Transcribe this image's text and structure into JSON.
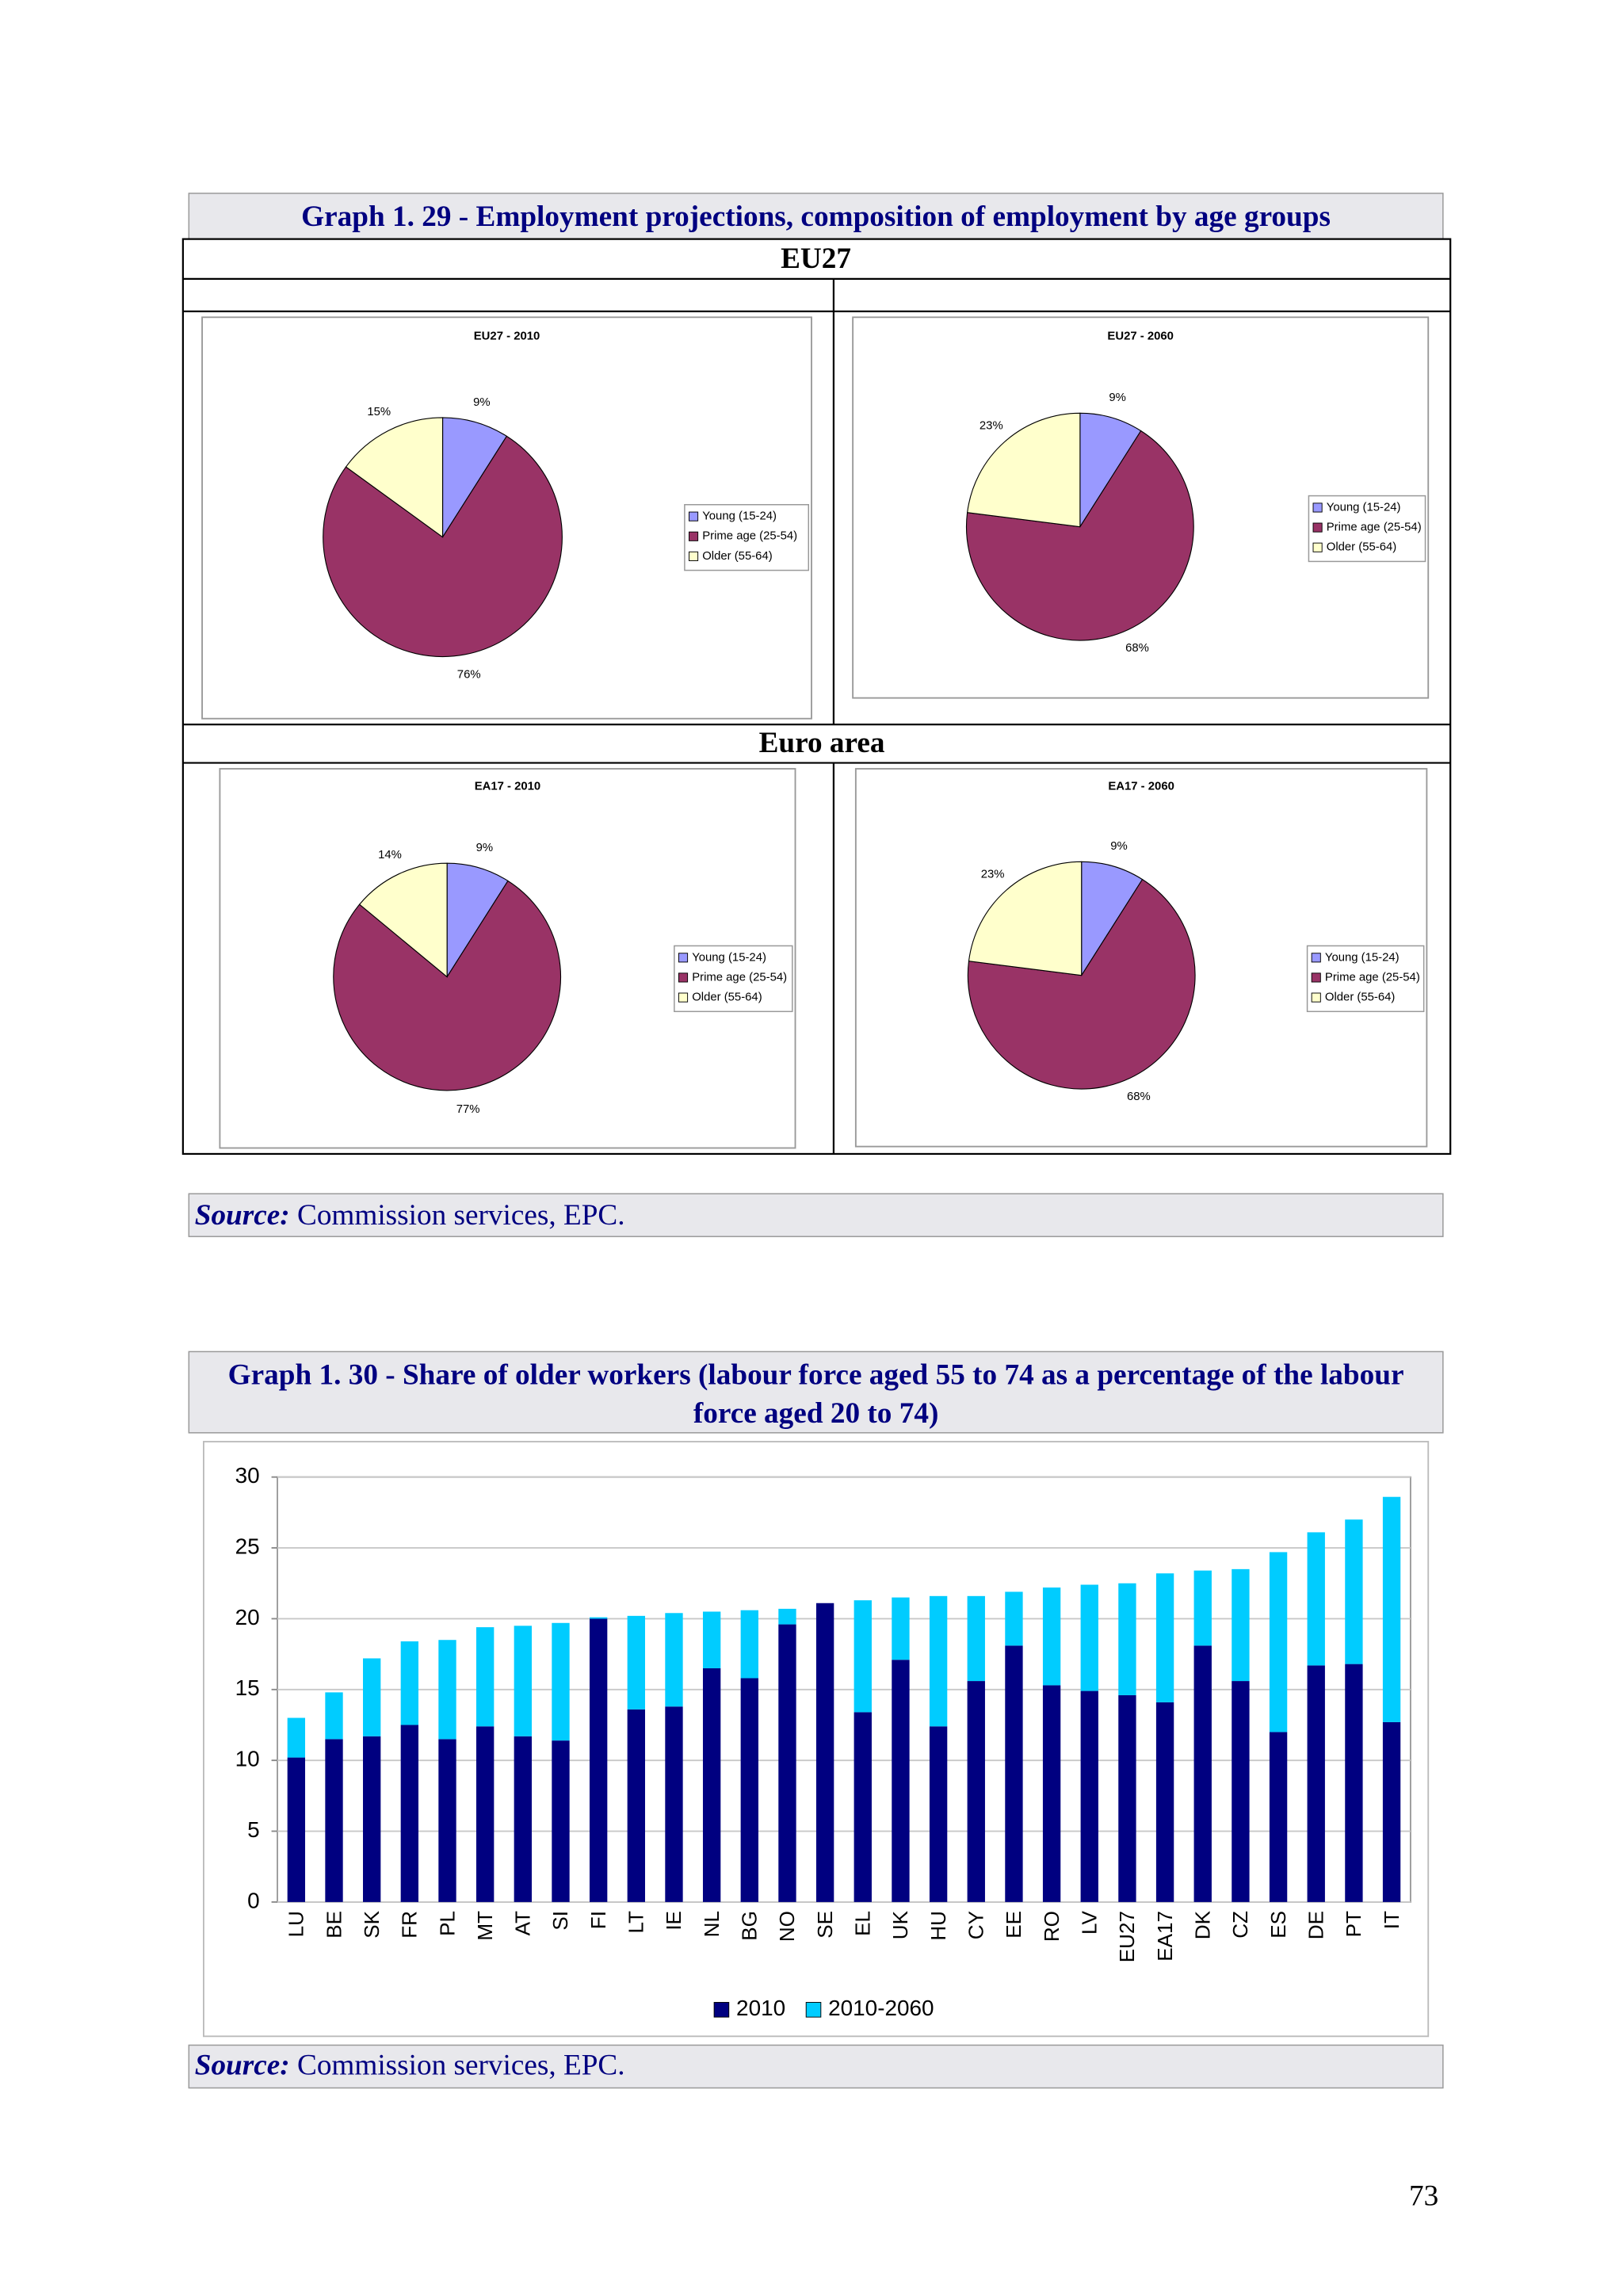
{
  "graph_1_29": {
    "title": "Graph 1. 29 - Employment projections, composition of employment by age groups",
    "panel_headings": [
      "EU27",
      "Euro area"
    ]
  },
  "graph_1_30": {
    "title": "Graph 1. 30 - Share of older workers (labour force aged 55 to 74 as a percentage of the labour force aged 20 to 74)"
  },
  "sources": [
    {
      "label": "Source:",
      "text": "Commission services, EPC."
    },
    {
      "label": "Source:",
      "text": "Commission services, EPC."
    }
  ],
  "page_number": "73",
  "chart_data": [
    {
      "type": "pie",
      "title": "EU27 - 2010",
      "categories": [
        "Young (15-24)",
        "Prime age (25-54)",
        "Older (55-64)"
      ],
      "values": [
        9,
        76,
        15
      ],
      "value_labels": [
        "9%",
        "76%",
        "15%"
      ],
      "colors": [
        "#9999ff",
        "#993366",
        "#ffffcc"
      ],
      "legend": "right"
    },
    {
      "type": "pie",
      "title": "EU27 - 2060",
      "categories": [
        "Young (15-24)",
        "Prime age (25-54)",
        "Older (55-64)"
      ],
      "values": [
        9,
        68,
        23
      ],
      "value_labels": [
        "9%",
        "68%",
        "23%"
      ],
      "colors": [
        "#9999ff",
        "#993366",
        "#ffffcc"
      ],
      "legend": "right"
    },
    {
      "type": "pie",
      "title": "EA17 - 2010",
      "categories": [
        "Young (15-24)",
        "Prime age (25-54)",
        "Older (55-64)"
      ],
      "values": [
        9,
        77,
        14
      ],
      "value_labels": [
        "9%",
        "77%",
        "14%"
      ],
      "colors": [
        "#9999ff",
        "#993366",
        "#ffffcc"
      ],
      "legend": "right"
    },
    {
      "type": "pie",
      "title": "EA17 - 2060",
      "categories": [
        "Young (15-24)",
        "Prime age (25-54)",
        "Older (55-64)"
      ],
      "values": [
        9,
        68,
        23
      ],
      "value_labels": [
        "9%",
        "68%",
        "23%"
      ],
      "colors": [
        "#9999ff",
        "#993366",
        "#ffffcc"
      ],
      "legend": "right"
    },
    {
      "type": "bar",
      "stacked": true,
      "categories": [
        "LU",
        "BE",
        "SK",
        "FR",
        "PL",
        "MT",
        "AT",
        "SI",
        "FI",
        "LT",
        "IE",
        "NL",
        "BG",
        "NO",
        "SE",
        "EL",
        "UK",
        "HU",
        "CY",
        "EE",
        "RO",
        "LV",
        "EU27",
        "EA17",
        "DK",
        "CZ",
        "ES",
        "DE",
        "PT",
        "IT"
      ],
      "series": [
        {
          "name": "2010",
          "color": "#000080",
          "values": [
            10.2,
            11.5,
            11.7,
            12.5,
            11.5,
            12.4,
            11.7,
            11.4,
            20.0,
            13.6,
            13.8,
            16.5,
            15.8,
            19.6,
            21.1,
            13.4,
            17.1,
            12.4,
            15.6,
            18.1,
            15.3,
            14.9,
            14.6,
            14.1,
            18.1,
            15.6,
            12.0,
            16.7,
            16.8,
            12.7
          ]
        },
        {
          "name": "2010-2060",
          "color": "#00ccff",
          "values": [
            2.8,
            3.3,
            5.5,
            5.9,
            7.0,
            7.0,
            7.8,
            8.3,
            0.1,
            6.6,
            6.6,
            4.0,
            4.8,
            1.1,
            0.0,
            7.9,
            4.4,
            9.2,
            6.0,
            3.8,
            6.9,
            7.5,
            7.9,
            9.1,
            5.3,
            7.9,
            12.7,
            9.4,
            10.2,
            15.9
          ]
        }
      ],
      "ylim": [
        0,
        30
      ],
      "yticks": [
        0,
        5,
        10,
        15,
        20,
        25,
        30
      ],
      "grid": true,
      "legend": "bottom"
    }
  ]
}
